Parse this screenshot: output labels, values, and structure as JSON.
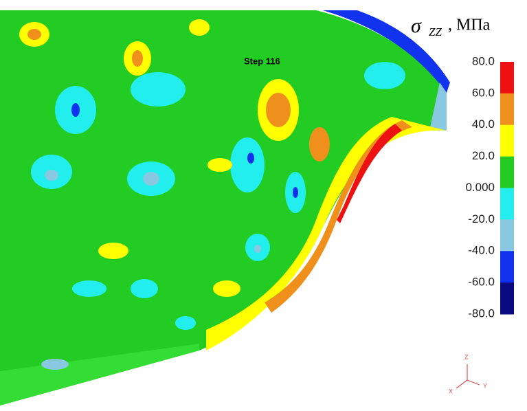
{
  "step_label": "Step 116",
  "legend": {
    "symbol": "σ",
    "subscript": "ZZ",
    "unit": ", МПа",
    "labels": [
      "80.0",
      "60.0",
      "40.0",
      "20.0",
      "0.000",
      "-20.0",
      "-40.0",
      "-60.0",
      "-80.0"
    ],
    "colors": [
      "#ee1111",
      "#f0901c",
      "#ffff00",
      "#22cc22",
      "#22eeee",
      "#88c8e0",
      "#1133ee",
      "#0a0a80"
    ]
  },
  "triad": {
    "z": "Z",
    "y": "Y",
    "x": "X"
  }
}
